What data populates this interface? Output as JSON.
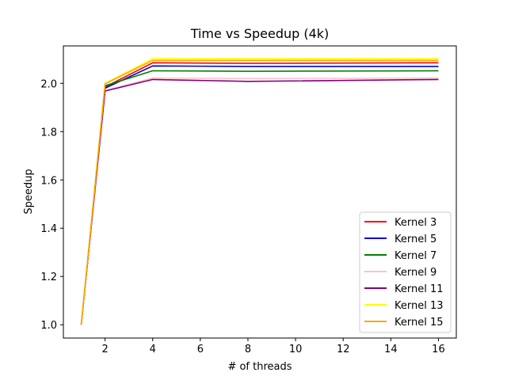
{
  "chart_data": {
    "type": "line",
    "title": "Time vs Speedup (4k)",
    "xlabel": "# of threads",
    "ylabel": "Speedup",
    "x": [
      1,
      2,
      4,
      8,
      16
    ],
    "xlim": [
      0.25,
      16.75
    ],
    "ylim": [
      0.945,
      2.155
    ],
    "xticks": [
      2,
      4,
      6,
      8,
      10,
      12,
      14,
      16
    ],
    "yticks": [
      1.0,
      1.2,
      1.4,
      1.6,
      1.8,
      2.0
    ],
    "ytick_labels": [
      "1.0",
      "1.2",
      "1.4",
      "1.6",
      "1.8",
      "2.0"
    ],
    "grid": false,
    "legend_position": "lower right",
    "series": [
      {
        "name": "Kernel 3",
        "color": "#ff0000",
        "values": [
          1.0,
          1.985,
          2.085,
          2.083,
          2.085
        ]
      },
      {
        "name": "Kernel 5",
        "color": "#0000cd",
        "values": [
          1.0,
          1.98,
          2.072,
          2.07,
          2.07
        ]
      },
      {
        "name": "Kernel 7",
        "color": "#008000",
        "values": [
          1.0,
          1.99,
          2.052,
          2.05,
          2.052
        ]
      },
      {
        "name": "Kernel 9",
        "color": "#ffc0cb",
        "values": [
          1.0,
          1.97,
          2.022,
          2.02,
          2.022
        ]
      },
      {
        "name": "Kernel 11",
        "color": "#800080",
        "values": [
          1.0,
          1.968,
          2.016,
          2.008,
          2.016
        ]
      },
      {
        "name": "Kernel 13",
        "color": "#ffff00",
        "values": [
          1.0,
          2.0,
          2.102,
          2.102,
          2.102
        ]
      },
      {
        "name": "Kernel 15",
        "color": "#ffa500",
        "values": [
          1.0,
          1.998,
          2.095,
          2.095,
          2.095
        ]
      }
    ]
  }
}
